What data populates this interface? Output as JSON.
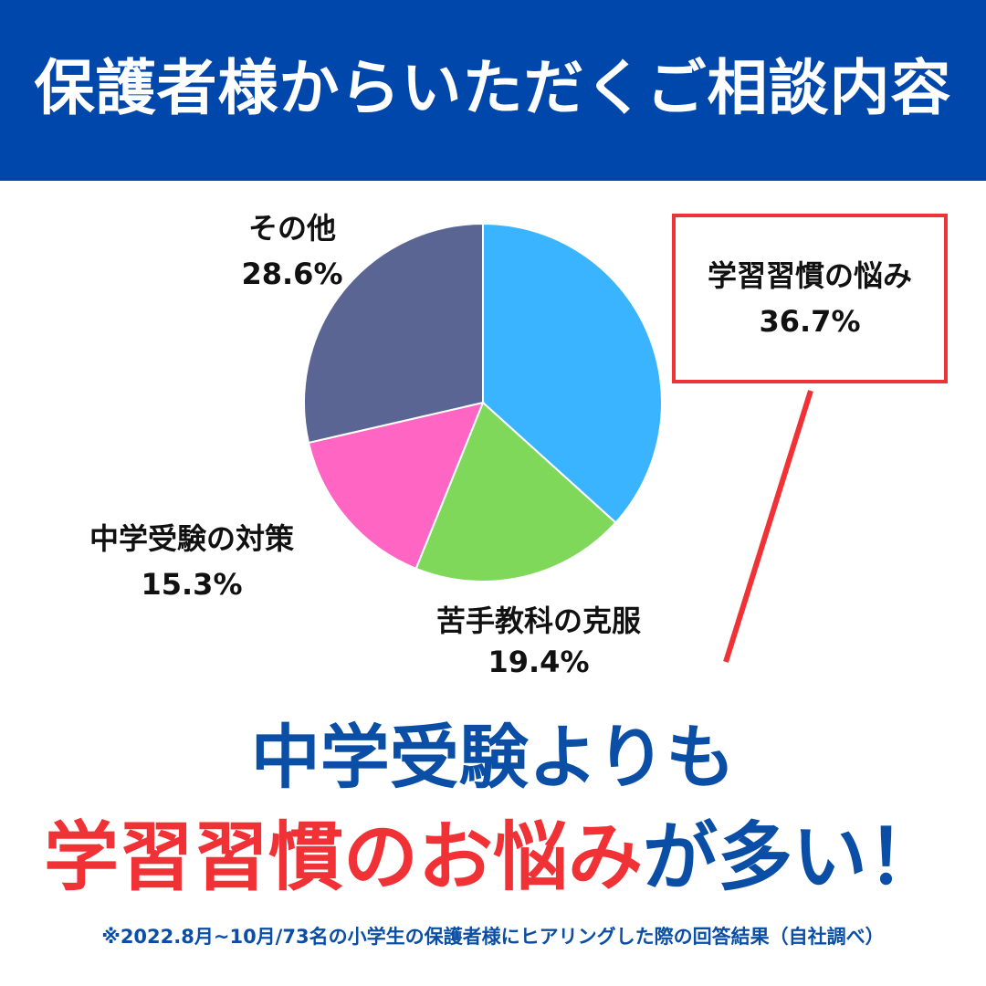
{
  "header": {
    "title": "保護者様からいただくご相談内容"
  },
  "chart_data": {
    "type": "pie",
    "title": "",
    "slices": [
      {
        "label": "学習習慣の悩み",
        "value": 36.7,
        "value_label": "36.7%",
        "color": "#3bb4ff"
      },
      {
        "label": "苦手教科の克服",
        "value": 19.4,
        "value_label": "19.4%",
        "color": "#80d85a"
      },
      {
        "label": "中学受験の対策",
        "value": 15.3,
        "value_label": "15.3%",
        "color": "#ff66c4"
      },
      {
        "label": "その他",
        "value": 28.6,
        "value_label": "28.6%",
        "color": "#5a6594"
      }
    ]
  },
  "callout": {
    "label": "学習習慣の悩み",
    "value": "36.7%",
    "color": "#f03237"
  },
  "headline": {
    "line1": "中学受験よりも",
    "line2_red": "学習習慣のお悩み",
    "line2_blue": "が多い！"
  },
  "footnote": "※2022.8月~10月/73名の小学生の保護者様にヒアリングした際の回答結果（自社調べ）",
  "colors": {
    "header_bg": "#0047ab",
    "headline_blue": "#0a4ea6",
    "accent_red": "#f03237"
  }
}
